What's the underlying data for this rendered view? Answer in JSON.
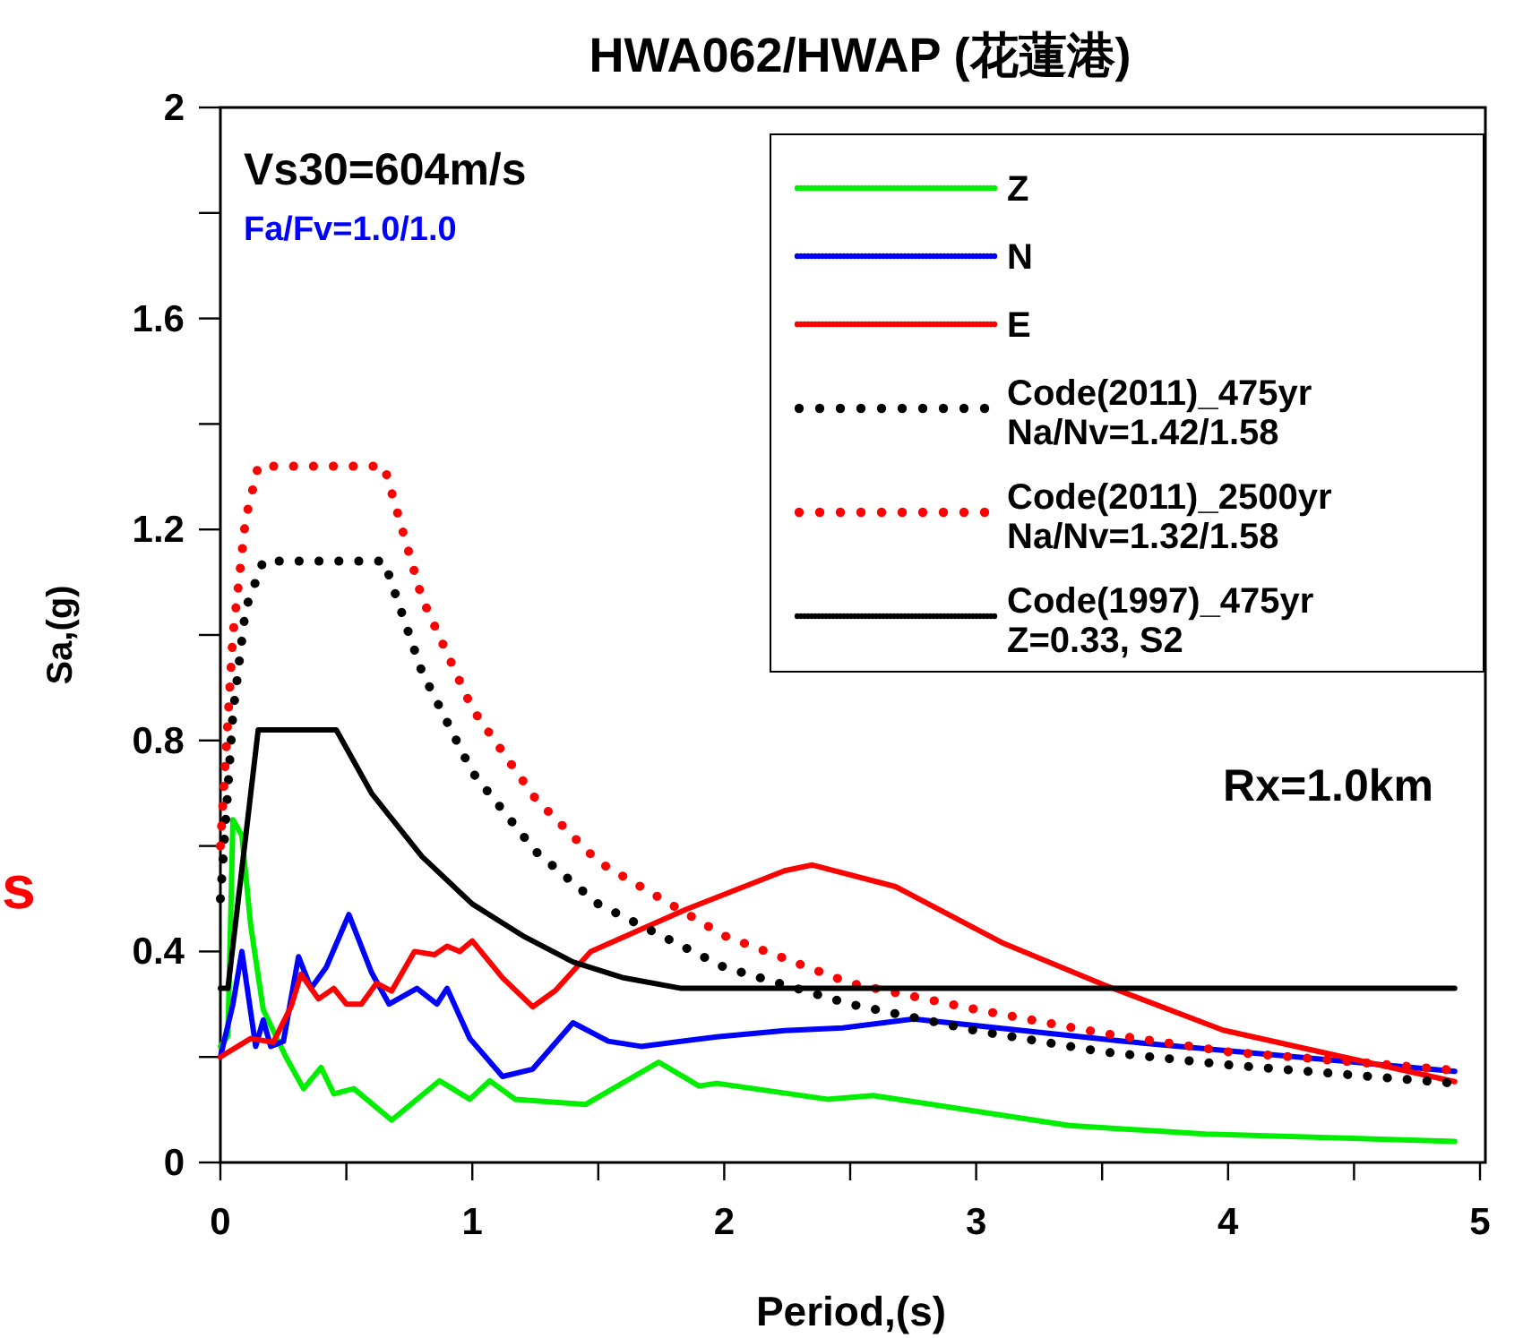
{
  "chart_data": {
    "type": "line",
    "title": "HWA062/HWAP (花蓮港)",
    "xlabel": "Period,(s)",
    "ylabel": "Sa,(g)",
    "xlim": [
      0,
      5
    ],
    "ylim": [
      0,
      2
    ],
    "xticks": [
      0,
      {
        "value": 0.5,
        "label": null
      },
      1,
      {
        "value": 1.5,
        "label": null
      },
      2,
      {
        "value": 2.5,
        "label": null
      },
      3,
      {
        "value": 3.5,
        "label": null
      },
      4,
      {
        "value": 4.5,
        "label": null
      },
      5
    ],
    "yticks": [
      0,
      {
        "value": 0.2,
        "label": null
      },
      0.4,
      {
        "value": 0.6,
        "label": null
      },
      0.8,
      {
        "value": 1.0,
        "label": null
      },
      1.2,
      {
        "value": 1.4,
        "label": null
      },
      1.6,
      {
        "value": 1.8,
        "label": null
      },
      2
    ],
    "grid": false,
    "legend": "top right",
    "marker": "none",
    "annotations": [
      "Vs30=604m/s",
      "Fa/Fv=1.0/1.0",
      "Rx=1.0km",
      "s"
    ],
    "series": [
      {
        "name": "Z",
        "color": "#00ee00",
        "line_style": "solid",
        "x": [
          0,
          0.03,
          0.05,
          0.085,
          0.12,
          0.17,
          0.26,
          0.33,
          0.4,
          0.45,
          0.53,
          0.68,
          0.87,
          0.99,
          1.07,
          1.17,
          1.45,
          1.74,
          1.9,
          1.97,
          2.41,
          2.59,
          3.37,
          3.91,
          4.9
        ],
        "values": [
          0.22,
          0.24,
          0.65,
          0.62,
          0.45,
          0.29,
          0.2,
          0.14,
          0.18,
          0.13,
          0.14,
          0.08,
          0.155,
          0.12,
          0.155,
          0.12,
          0.11,
          0.19,
          0.145,
          0.15,
          0.12,
          0.127,
          0.07,
          0.054,
          0.04
        ]
      },
      {
        "name": "N",
        "color": "#0000ff",
        "line_style": "solid",
        "x": [
          0,
          0.05,
          0.085,
          0.14,
          0.17,
          0.2,
          0.25,
          0.31,
          0.36,
          0.42,
          0.51,
          0.6,
          0.67,
          0.78,
          0.86,
          0.9,
          0.99,
          1.12,
          1.24,
          1.4,
          1.54,
          1.67,
          1.97,
          2.24,
          2.47,
          2.75,
          3.58,
          4.9
        ],
        "values": [
          0.2,
          0.3,
          0.4,
          0.22,
          0.27,
          0.22,
          0.23,
          0.39,
          0.33,
          0.37,
          0.47,
          0.36,
          0.3,
          0.33,
          0.3,
          0.33,
          0.235,
          0.163,
          0.177,
          0.265,
          0.23,
          0.22,
          0.238,
          0.25,
          0.255,
          0.272,
          0.23,
          0.173
        ]
      },
      {
        "name": "E",
        "color": "#ff0000",
        "line_style": "solid",
        "x": [
          0,
          0.12,
          0.21,
          0.28,
          0.32,
          0.39,
          0.45,
          0.5,
          0.56,
          0.62,
          0.68,
          0.77,
          0.85,
          0.9,
          0.95,
          1.0,
          1.12,
          1.24,
          1.33,
          1.47,
          1.85,
          2.24,
          2.35,
          2.68,
          3.11,
          3.51,
          3.98,
          4.39,
          4.9
        ],
        "values": [
          0.2,
          0.235,
          0.228,
          0.295,
          0.357,
          0.31,
          0.33,
          0.3,
          0.3,
          0.34,
          0.325,
          0.4,
          0.394,
          0.41,
          0.4,
          0.42,
          0.35,
          0.295,
          0.326,
          0.4,
          0.48,
          0.553,
          0.564,
          0.523,
          0.415,
          0.336,
          0.251,
          0.207,
          0.153
        ]
      },
      {
        "name": "Code(2011)_475yr\nNa/Nv=1.42/1.58",
        "color": "#000000",
        "line_style": "dotted",
        "x": [
          0,
          0.05,
          0.1,
          0.17,
          0.65,
          0.8,
          1.0,
          1.25,
          1.5,
          2.0,
          2.5,
          3.0,
          3.5,
          4.0,
          4.9
        ],
        "values": [
          0.5,
          0.85,
          1.05,
          1.14,
          1.14,
          0.93,
          0.74,
          0.59,
          0.49,
          0.37,
          0.3,
          0.25,
          0.21,
          0.185,
          0.15
        ]
      },
      {
        "name": "Code(2011)_2500yr\nNa/Nv=1.32/1.58",
        "color": "#ff0000",
        "line_style": "dotted",
        "x": [
          0,
          0.05,
          0.1,
          0.15,
          0.65,
          0.8,
          1.0,
          1.25,
          1.5,
          2.0,
          2.5,
          3.0,
          3.5,
          4.0,
          4.9
        ],
        "values": [
          0.6,
          1.0,
          1.22,
          1.32,
          1.32,
          1.07,
          0.86,
          0.69,
          0.57,
          0.43,
          0.34,
          0.29,
          0.245,
          0.21,
          0.175
        ]
      },
      {
        "name": "Code(1997)_475yr\nZ=0.33, S2",
        "color": "#000000",
        "line_style": "solid",
        "x": [
          0,
          0.03,
          0.15,
          0.46,
          0.6,
          0.8,
          1.0,
          1.2,
          1.4,
          1.6,
          1.83,
          4.9
        ],
        "values": [
          0.33,
          0.33,
          0.82,
          0.82,
          0.7,
          0.58,
          0.49,
          0.43,
          0.38,
          0.35,
          0.33,
          0.33
        ]
      }
    ]
  }
}
